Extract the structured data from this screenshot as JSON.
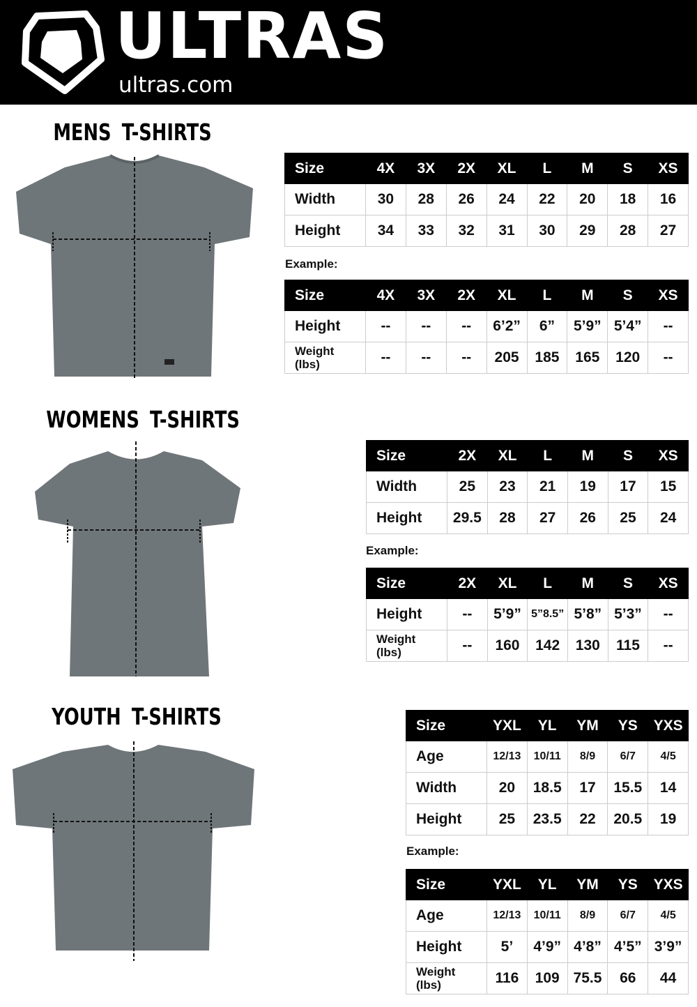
{
  "brand": {
    "name": "ULTRAS",
    "domain": "ultras.com"
  },
  "example_label": "Example:",
  "sections": [
    {
      "title": "MENS T-SHIRTS",
      "measure_table": {
        "rows": [
          [
            "Size",
            "4X",
            "3X",
            "2X",
            "XL",
            "L",
            "M",
            "S",
            "XS"
          ],
          [
            "Width",
            "30",
            "28",
            "26",
            "24",
            "22",
            "20",
            "18",
            "16"
          ],
          [
            "Height",
            "34",
            "33",
            "32",
            "31",
            "30",
            "29",
            "28",
            "27"
          ]
        ]
      },
      "example_table": {
        "rows": [
          [
            "Size",
            "4X",
            "3X",
            "2X",
            "XL",
            "L",
            "M",
            "S",
            "XS"
          ],
          [
            "Height",
            "--",
            "--",
            "--",
            "6’2”",
            "6”",
            "5’9”",
            "5’4”",
            "--"
          ],
          [
            "Weight (lbs)",
            "--",
            "--",
            "--",
            "205",
            "185",
            "165",
            "120",
            "--"
          ]
        ]
      }
    },
    {
      "title": "WOMENS T-SHIRTS",
      "measure_table": {
        "rows": [
          [
            "Size",
            "2X",
            "XL",
            "L",
            "M",
            "S",
            "XS"
          ],
          [
            "Width",
            "25",
            "23",
            "21",
            "19",
            "17",
            "15"
          ],
          [
            "Height",
            "29.5",
            "28",
            "27",
            "26",
            "25",
            "24"
          ]
        ]
      },
      "example_table": {
        "rows": [
          [
            "Size",
            "2X",
            "XL",
            "L",
            "M",
            "S",
            "XS"
          ],
          [
            "Height",
            "--",
            "5’9”",
            "5”8.5”",
            "5’8”",
            "5’3”",
            "--"
          ],
          [
            "Weight (lbs)",
            "--",
            "160",
            "142",
            "130",
            "115",
            "--"
          ]
        ]
      }
    },
    {
      "title": "YOUTH T-SHIRTS",
      "measure_table": {
        "rows": [
          [
            "Size",
            "YXL",
            "YL",
            "YM",
            "YS",
            "YXS"
          ],
          [
            "Age",
            "12/13",
            "10/11",
            "8/9",
            "6/7",
            "4/5"
          ],
          [
            "Width",
            "20",
            "18.5",
            "17",
            "15.5",
            "14"
          ],
          [
            "Height",
            "25",
            "23.5",
            "22",
            "20.5",
            "19"
          ]
        ]
      },
      "example_table": {
        "rows": [
          [
            "Size",
            "YXL",
            "YL",
            "YM",
            "YS",
            "YXS"
          ],
          [
            "Age",
            "12/13",
            "10/11",
            "8/9",
            "6/7",
            "4/5"
          ],
          [
            "Height",
            "5’",
            "4’9”",
            "4’8”",
            "4’5”",
            "3’9”"
          ],
          [
            "Weight (lbs)",
            "116",
            "109",
            "75.5",
            "66",
            "44"
          ]
        ]
      }
    }
  ],
  "colors": {
    "header_bg": "#000000",
    "shirt": "#6f7679",
    "table_header": "#000000"
  }
}
